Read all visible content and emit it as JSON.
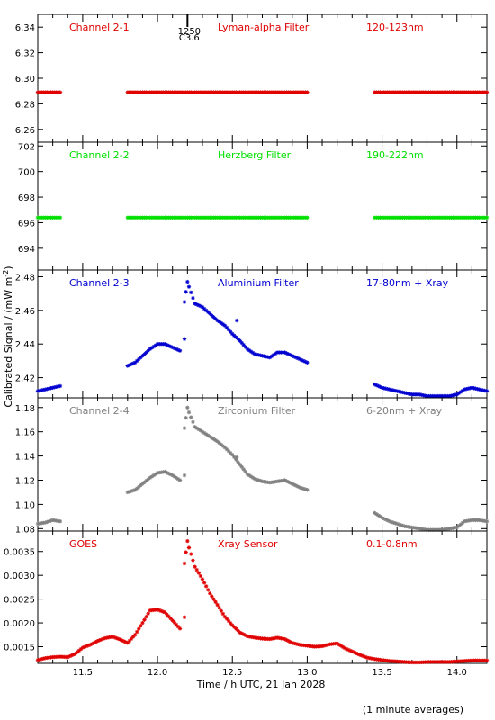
{
  "shared": {
    "xlabel": "Time / h UTC, 21 Jan 2028",
    "ylabel": "Calibrated Signal / (mW m",
    "ylabel_sup": "-2",
    "ylabel_end": ")",
    "footnote": "(1 minute averages)",
    "xlim": [
      11.2,
      14.2
    ],
    "xticks": [
      11.5,
      12.0,
      12.5,
      13.0,
      13.5,
      14.0
    ],
    "xtick_labels": [
      "11.5",
      "12.0",
      "12.5",
      "13.0",
      "13.5",
      "14.0"
    ],
    "marker_time": {
      "x": 12.2,
      "label_top": "1250",
      "label_bottom": "C3.6"
    }
  },
  "chart_data": [
    {
      "type": "scatter",
      "panel": 1,
      "color": "#e00000",
      "labels": [
        "Channel 2-1",
        "Lyman-alpha Filter",
        "120-123nm"
      ],
      "ylim": [
        6.25,
        6.35
      ],
      "yticks": [
        6.26,
        6.28,
        6.3,
        6.32,
        6.34
      ],
      "ytick_labels": [
        "6.26",
        "6.28",
        "6.30",
        "6.32",
        "6.34"
      ],
      "segments": [
        {
          "x": [
            11.2,
            11.35
          ],
          "y": [
            6.289,
            6.289
          ]
        },
        {
          "x": [
            11.8,
            13.0
          ],
          "y": [
            6.289,
            6.289
          ]
        },
        {
          "x": [
            13.45,
            14.2
          ],
          "y": [
            6.289,
            6.289
          ]
        }
      ]
    },
    {
      "type": "scatter",
      "panel": 2,
      "color": "#00e000",
      "labels": [
        "Channel 2-2",
        "Herzberg Filter",
        "190-222nm"
      ],
      "ylim": [
        692.3,
        702.3
      ],
      "yticks": [
        694,
        696,
        698,
        700,
        702
      ],
      "ytick_labels": [
        "694",
        "696",
        "698",
        "700",
        "702"
      ],
      "segments": [
        {
          "x": [
            11.2,
            11.35
          ],
          "y": [
            696.4,
            696.4
          ]
        },
        {
          "x": [
            11.8,
            13.0
          ],
          "y": [
            696.4,
            696.4
          ]
        },
        {
          "x": [
            13.45,
            14.2
          ],
          "y": [
            696.4,
            696.4
          ]
        }
      ]
    },
    {
      "type": "scatter",
      "panel": 3,
      "color": "#0000d0",
      "labels": [
        "Channel 2-3",
        "Aluminium Filter",
        "17-80nm + Xray"
      ],
      "ylim": [
        2.408,
        2.484
      ],
      "yticks": [
        2.42,
        2.44,
        2.46,
        2.48
      ],
      "ytick_labels": [
        "2.42",
        "2.44",
        "2.46",
        "2.48"
      ],
      "segments": [
        {
          "x": [
            11.2,
            11.25,
            11.3,
            11.35
          ],
          "y": [
            2.412,
            2.413,
            2.414,
            2.415
          ]
        },
        {
          "x": [
            11.8,
            11.85,
            11.9,
            11.95,
            12.0,
            12.05,
            12.1,
            12.15
          ],
          "y": [
            2.427,
            2.429,
            2.433,
            2.437,
            2.44,
            2.44,
            2.438,
            2.436
          ]
        },
        {
          "x": [
            12.18,
            12.2,
            12.21,
            12.25,
            12.3,
            12.35,
            12.4,
            12.45,
            12.5,
            12.55,
            12.6,
            12.65,
            12.7,
            12.75,
            12.8,
            12.85,
            12.9,
            12.95,
            13.0
          ],
          "y": [
            2.465,
            2.477,
            2.474,
            2.464,
            2.462,
            2.458,
            2.454,
            2.451,
            2.446,
            2.442,
            2.437,
            2.434,
            2.433,
            2.432,
            2.435,
            2.435,
            2.433,
            2.431,
            2.429
          ]
        },
        {
          "x": [
            13.45,
            13.5,
            13.55,
            13.6,
            13.65,
            13.7,
            13.75,
            13.8,
            13.85,
            13.9,
            13.95,
            14.0,
            14.05,
            14.1,
            14.15,
            14.2
          ],
          "y": [
            2.416,
            2.414,
            2.413,
            2.412,
            2.411,
            2.41,
            2.41,
            2.409,
            2.409,
            2.409,
            2.409,
            2.41,
            2.413,
            2.414,
            2.413,
            2.412
          ]
        }
      ],
      "outliers": [
        {
          "x": 12.18,
          "y": 2.443
        },
        {
          "x": 12.53,
          "y": 2.454
        }
      ]
    },
    {
      "type": "scatter",
      "panel": 4,
      "color": "#808080",
      "labels": [
        "Channel 2-4",
        "Zirconium Filter",
        "6-20nm + Xray"
      ],
      "ylim": [
        1.078,
        1.188
      ],
      "yticks": [
        1.08,
        1.1,
        1.12,
        1.14,
        1.16,
        1.18
      ],
      "ytick_labels": [
        "1.08",
        "1.10",
        "1.12",
        "1.14",
        "1.16",
        "1.18"
      ],
      "segments": [
        {
          "x": [
            11.2,
            11.25,
            11.3,
            11.35
          ],
          "y": [
            1.084,
            1.085,
            1.087,
            1.086
          ]
        },
        {
          "x": [
            11.8,
            11.85,
            11.9,
            11.95,
            12.0,
            12.05,
            12.1,
            12.15
          ],
          "y": [
            1.11,
            1.112,
            1.117,
            1.122,
            1.126,
            1.127,
            1.124,
            1.12
          ]
        },
        {
          "x": [
            12.18,
            12.2,
            12.21,
            12.25,
            12.3,
            12.35,
            12.4,
            12.45,
            12.5,
            12.55,
            12.6,
            12.65,
            12.7,
            12.75,
            12.8,
            12.85,
            12.9,
            12.95,
            13.0
          ],
          "y": [
            1.163,
            1.18,
            1.176,
            1.164,
            1.16,
            1.156,
            1.152,
            1.147,
            1.141,
            1.133,
            1.125,
            1.121,
            1.119,
            1.118,
            1.119,
            1.12,
            1.117,
            1.114,
            1.112
          ]
        },
        {
          "x": [
            13.45,
            13.5,
            13.55,
            13.6,
            13.65,
            13.7,
            13.75,
            13.8,
            13.85,
            13.9,
            13.95,
            14.0,
            14.05,
            14.1,
            14.15,
            14.2
          ],
          "y": [
            1.093,
            1.089,
            1.086,
            1.084,
            1.082,
            1.081,
            1.08,
            1.079,
            1.079,
            1.079,
            1.08,
            1.081,
            1.086,
            1.087,
            1.087,
            1.086
          ]
        }
      ],
      "outliers": [
        {
          "x": 12.18,
          "y": 1.124
        },
        {
          "x": 12.53,
          "y": 1.139
        }
      ]
    },
    {
      "type": "scatter",
      "panel": 5,
      "color": "#e00000",
      "labels": [
        "GOES",
        "Xray Sensor",
        "0.1-0.8nm"
      ],
      "ylim": [
        0.00115,
        0.00393
      ],
      "yticks": [
        0.0015,
        0.002,
        0.0025,
        0.003,
        0.0035
      ],
      "ytick_labels": [
        "0.0015",
        "0.0020",
        "0.0025",
        "0.0030",
        "0.0035"
      ],
      "segments": [
        {
          "x": [
            11.2,
            11.25,
            11.3,
            11.35,
            11.4,
            11.45,
            11.5,
            11.55,
            11.6,
            11.65,
            11.7,
            11.75,
            11.8,
            11.85,
            11.9,
            11.95,
            12.0,
            12.05,
            12.1,
            12.15
          ],
          "y": [
            0.00122,
            0.00126,
            0.00128,
            0.00129,
            0.00128,
            0.00135,
            0.00148,
            0.00154,
            0.00162,
            0.00168,
            0.00171,
            0.00165,
            0.00158,
            0.00175,
            0.002,
            0.00226,
            0.00228,
            0.00222,
            0.00205,
            0.00188
          ]
        },
        {
          "x": [
            12.18,
            12.2,
            12.21,
            12.25,
            12.3,
            12.35,
            12.4,
            12.45,
            12.5,
            12.55,
            12.6,
            12.65,
            12.7,
            12.75,
            12.8,
            12.85,
            12.9,
            12.95,
            13.0,
            13.05,
            13.1,
            13.15,
            13.2,
            13.25,
            13.3,
            13.35,
            13.4,
            13.45,
            13.5,
            13.55,
            13.6,
            13.65,
            13.7,
            13.75,
            13.8,
            13.85,
            13.9,
            13.95,
            14.0,
            14.05,
            14.1,
            14.15,
            14.2
          ],
          "y": [
            0.00325,
            0.00372,
            0.00358,
            0.00318,
            0.00292,
            0.00262,
            0.00238,
            0.00213,
            0.00195,
            0.0018,
            0.00172,
            0.00169,
            0.00167,
            0.00166,
            0.00169,
            0.00166,
            0.00158,
            0.00154,
            0.00152,
            0.0015,
            0.00151,
            0.00155,
            0.00157,
            0.00147,
            0.0014,
            0.00133,
            0.00127,
            0.00124,
            0.00122,
            0.0012,
            0.00119,
            0.00118,
            0.00117,
            0.00117,
            0.00118,
            0.00118,
            0.00118,
            0.00118,
            0.00119,
            0.0012,
            0.00121,
            0.00121,
            0.00121
          ]
        }
      ],
      "outliers": [
        {
          "x": 12.18,
          "y": 0.00212
        }
      ]
    }
  ]
}
